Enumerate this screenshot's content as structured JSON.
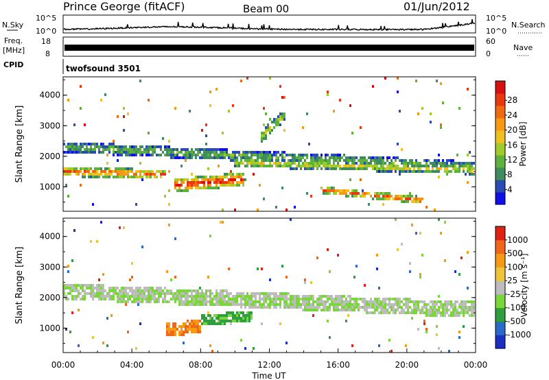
{
  "header": {
    "station": "Prince George (fitACF)",
    "beam": "Beam 00",
    "date": "01/Jun/2012"
  },
  "top_panels": {
    "nsky_label": "N.Sky",
    "nsky_left_ticks": [
      "10^5",
      "10^0"
    ],
    "nsearch_label": "N.Search",
    "nsearch_right_ticks": [
      "10^5",
      "10^0"
    ],
    "freq_label_1": "Freq.",
    "freq_label_2": "[MHz]",
    "freq_left_ticks": [
      "18",
      "8"
    ],
    "nave_label": "Nave",
    "nave_right_ticks": [
      "60",
      "0"
    ],
    "cpid_label": "CPID",
    "cpid_value": "twofsound 3501"
  },
  "chart_data": [
    {
      "type": "heatmap",
      "name": "power",
      "ylabel": "Slant Range [km]",
      "ytick_labels": [
        "1000",
        "2000",
        "3000",
        "4000"
      ],
      "yticks": [
        1000,
        2000,
        3000,
        4000
      ],
      "ylim": [
        200,
        4600
      ],
      "xlim": [
        0,
        24
      ],
      "colorbar": {
        "label": "Power [dB]",
        "tick_labels": [
          "4",
          "8",
          "12",
          "16",
          "20",
          "24",
          "28"
        ],
        "colors": [
          "#1010e6",
          "#2a4bb4",
          "#3f8c5f",
          "#5db13d",
          "#9fcc2c",
          "#f0c020",
          "#f59a12",
          "#f06a10",
          "#e83810",
          "#d81010"
        ]
      },
      "bands": [
        {
          "x": [
            0,
            24
          ],
          "center": [
            2300,
            1650
          ],
          "width": 180,
          "level": 0.35
        },
        {
          "x": [
            0,
            6
          ],
          "center": [
            1500,
            1400
          ],
          "width": 160,
          "level": 0.8
        },
        {
          "x": [
            6.5,
            10.5
          ],
          "center": [
            1050,
            1250
          ],
          "width": 220,
          "level": 0.95
        },
        {
          "x": [
            10,
            24
          ],
          "center": [
            1800,
            1550
          ],
          "width": 150,
          "level": 0.55
        },
        {
          "x": [
            11.5,
            13
          ],
          "center": [
            2600,
            3400
          ],
          "width": 200,
          "level": 0.5
        },
        {
          "x": [
            15,
            21
          ],
          "center": [
            900,
            550
          ],
          "width": 120,
          "level": 0.85
        }
      ]
    },
    {
      "type": "heatmap",
      "name": "velocity",
      "ylabel": "Slant Range [km]",
      "ytick_labels": [
        "1000",
        "2000",
        "3000",
        "4000"
      ],
      "yticks": [
        1000,
        2000,
        3000,
        4000
      ],
      "ylim": [
        200,
        4600
      ],
      "xlim": [
        0,
        24
      ],
      "xtick_labels": [
        "00:00",
        "04:00",
        "08:00",
        "12:00",
        "16:00",
        "20:00",
        "00:00"
      ],
      "xticks": [
        0,
        4,
        8,
        12,
        16,
        20,
        24
      ],
      "xlabel": "Time UT",
      "colorbar": {
        "label": "Velocity [m s^-1]",
        "tick_labels": [
          "1000",
          "500",
          "100",
          "25",
          "-25",
          "-100",
          "-500",
          "-1000"
        ],
        "colors": [
          "#1b2fc0",
          "#2a6acc",
          "#2e9e3e",
          "#7ad63a",
          "#bdbdbd",
          "#f0c43a",
          "#f59a12",
          "#f0661a",
          "#e02010"
        ]
      },
      "bands": [
        {
          "x": [
            0,
            24
          ],
          "center": [
            2200,
            1600
          ],
          "width": 260,
          "level": 0.45
        },
        {
          "x": [
            6,
            8
          ],
          "center": [
            950,
            1050
          ],
          "width": 220,
          "level": 0.78
        },
        {
          "x": [
            8,
            11
          ],
          "center": [
            1250,
            1400
          ],
          "width": 180,
          "level": 0.3
        }
      ]
    }
  ],
  "axis_titles": {
    "power_colorbar_label": "Power [dB]",
    "velocity_colorbar_label": "Velocity [m s⁻¹]"
  }
}
